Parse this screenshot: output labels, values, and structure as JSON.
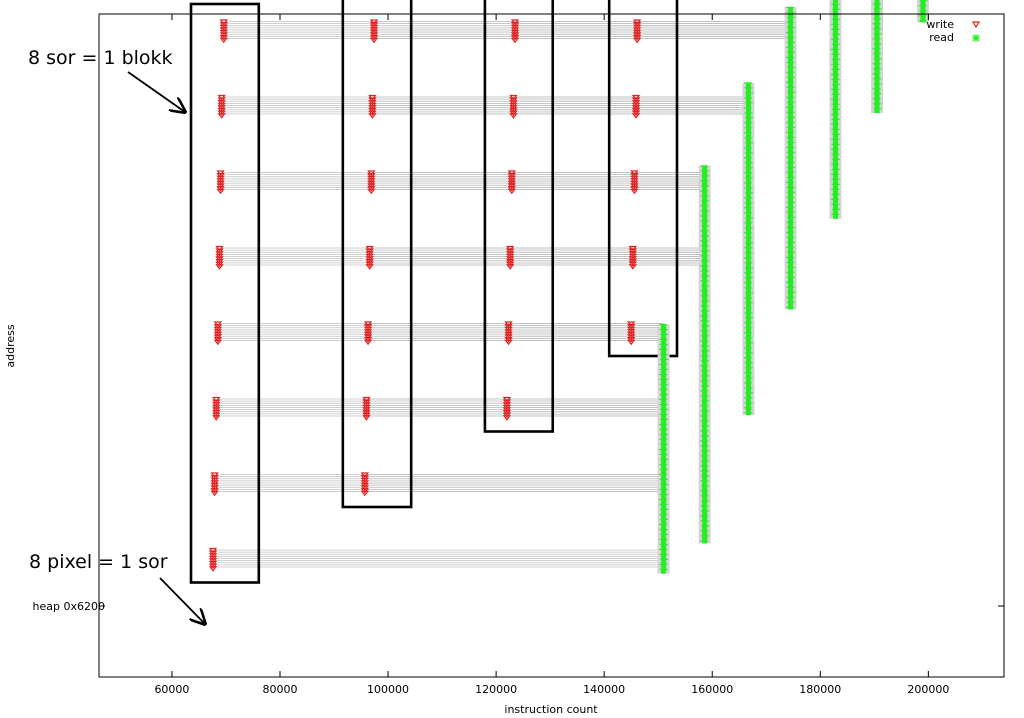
{
  "chart_data": {
    "type": "scatter",
    "title": "",
    "xlabel": "instruction count",
    "ylabel": "address",
    "xlim": [
      46500,
      214000
    ],
    "x_ticks": [
      "60000",
      "80000",
      "100000",
      "120000",
      "140000",
      "160000",
      "180000",
      "200000"
    ],
    "x_tick_values": [
      60000,
      80000,
      100000,
      120000,
      140000,
      160000,
      180000,
      200000
    ],
    "y_tick_label": "heap 0x6200",
    "grid": false,
    "legend_position": "top-right",
    "series": [
      {
        "name": "write",
        "marker": "triangle-down",
        "color": "#e02020",
        "blocks": [
          {
            "rows": [
              {
                "x": 69600,
                "y": 8
              },
              {
                "x": 69200,
                "y": 7
              },
              {
                "x": 69000,
                "y": 6
              },
              {
                "x": 68800,
                "y": 5
              },
              {
                "x": 68500,
                "y": 4
              },
              {
                "x": 68200,
                "y": 3
              },
              {
                "x": 67900,
                "y": 2
              },
              {
                "x": 67600,
                "y": 1
              }
            ]
          },
          {
            "rows": [
              {
                "x": 97800,
                "y": 9
              },
              {
                "x": 97400,
                "y": 8
              },
              {
                "x": 97100,
                "y": 7
              },
              {
                "x": 96900,
                "y": 6
              },
              {
                "x": 96600,
                "y": 5
              },
              {
                "x": 96300,
                "y": 4
              },
              {
                "x": 96000,
                "y": 3
              },
              {
                "x": 95700,
                "y": 2
              }
            ]
          },
          {
            "rows": [
              {
                "x": 124000,
                "y": 10
              },
              {
                "x": 123800,
                "y": 9
              },
              {
                "x": 123500,
                "y": 8
              },
              {
                "x": 123200,
                "y": 7
              },
              {
                "x": 122900,
                "y": 6
              },
              {
                "x": 122600,
                "y": 5
              },
              {
                "x": 122300,
                "y": 4
              },
              {
                "x": 122000,
                "y": 3
              }
            ]
          },
          {
            "rows": [
              {
                "x": 147000,
                "y": 11
              },
              {
                "x": 146700,
                "y": 10
              },
              {
                "x": 146400,
                "y": 9
              },
              {
                "x": 146100,
                "y": 8
              },
              {
                "x": 145900,
                "y": 7
              },
              {
                "x": 145600,
                "y": 6
              },
              {
                "x": 145300,
                "y": 5
              },
              {
                "x": 145000,
                "y": 4
              }
            ]
          }
        ]
      },
      {
        "name": "read",
        "marker": "star",
        "color": "#22ee22",
        "columns": [
          {
            "x": 151000,
            "y_from": 0.8,
            "y_to": 4.1
          },
          {
            "x": 158600,
            "y_from": 1.2,
            "y_to": 6.2
          },
          {
            "x": 166700,
            "y_from": 2.9,
            "y_to": 7.3
          },
          {
            "x": 174500,
            "y_from": 4.3,
            "y_to": 8.3
          },
          {
            "x": 182800,
            "y_from": 5.5,
            "y_to": 9.4
          },
          {
            "x": 190500,
            "y_from": 6.9,
            "y_to": 10.4
          },
          {
            "x": 199000,
            "y_from": 8.1,
            "y_to": 11.5
          }
        ]
      }
    ],
    "annotations": [
      "8 sor = 1 blokk",
      "8 pixel = 1 sor"
    ]
  }
}
